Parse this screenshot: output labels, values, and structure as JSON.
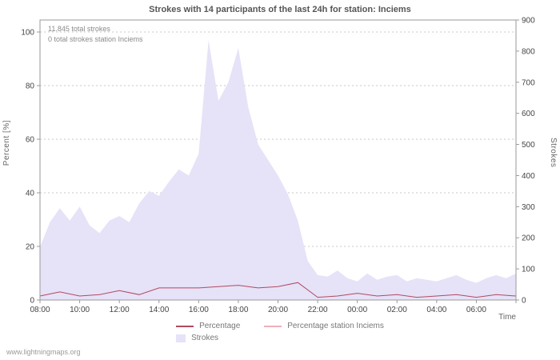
{
  "title": "Strokes with 14 participants of the last 24h for station: Inciems",
  "annotations": {
    "total": "11.845 total strokes",
    "station": "0 total strokes station Inciems"
  },
  "axes": {
    "left_label": "Percent [%]",
    "right_label": "Strokes",
    "x_label": "Time"
  },
  "legend": {
    "items": [
      {
        "label": "Percentage",
        "color": "#b04a5e",
        "type": "line"
      },
      {
        "label": "Percentage station Inciems",
        "color": "#f2aebc",
        "type": "line"
      },
      {
        "label": "Strokes",
        "color": "#e6e2f8",
        "type": "area"
      }
    ]
  },
  "watermark": "www.lightningmaps.org",
  "colors": {
    "area": "#e6e2f8",
    "percentage_line": "#b04a5e",
    "station_line": "#f2aebc",
    "grid": "#c8c8c8",
    "axis": "#999999",
    "tick_text": "#444444"
  },
  "chart_data": {
    "type": "area",
    "title": "Strokes with 14 participants of the last 24h for station: Inciems",
    "xlabel": "Time",
    "ylabel_left": "Percent [%]",
    "ylabel_right": "Strokes",
    "x_hours_span": 24,
    "x_tick_labels": [
      "08:00",
      "10:00",
      "12:00",
      "14:00",
      "16:00",
      "18:00",
      "20:00",
      "22:00",
      "00:00",
      "02:00",
      "04:00",
      "06:00"
    ],
    "left_axis": {
      "ticks": [
        0,
        20,
        40,
        60,
        80,
        100
      ],
      "range": [
        0,
        100
      ]
    },
    "right_axis": {
      "ticks": [
        0,
        100,
        200,
        300,
        400,
        500,
        600,
        700,
        800,
        900
      ],
      "range": [
        0,
        900
      ]
    },
    "series": [
      {
        "name": "Strokes",
        "axis": "right",
        "type": "area",
        "step_hours": 0.5,
        "values": [
          170,
          250,
          295,
          255,
          300,
          240,
          215,
          255,
          270,
          250,
          310,
          350,
          335,
          380,
          420,
          400,
          470,
          835,
          640,
          700,
          810,
          620,
          500,
          450,
          400,
          340,
          255,
          125,
          80,
          75,
          95,
          70,
          60,
          85,
          65,
          75,
          80,
          60,
          70,
          65,
          60,
          70,
          80,
          65,
          55,
          70,
          80,
          70,
          85
        ]
      },
      {
        "name": "Percentage",
        "axis": "left",
        "type": "line",
        "step_hours": 1,
        "values": [
          1.5,
          3,
          1.5,
          2,
          3.5,
          2,
          4.5,
          4.5,
          4.5,
          5,
          5.5,
          4.5,
          5,
          6.5,
          1,
          1.5,
          2.5,
          1.5,
          2,
          1,
          1.5,
          2,
          1,
          2,
          1.5
        ]
      },
      {
        "name": "Percentage station Inciems",
        "axis": "left",
        "type": "line",
        "step_hours": 1,
        "values": [
          0,
          0,
          0,
          0,
          0,
          0,
          0,
          0,
          0,
          0,
          0,
          0,
          0,
          0,
          0,
          0,
          0,
          0,
          0,
          0,
          0,
          0,
          0,
          0,
          0
        ]
      }
    ],
    "legend_position": "bottom",
    "grid": true
  }
}
